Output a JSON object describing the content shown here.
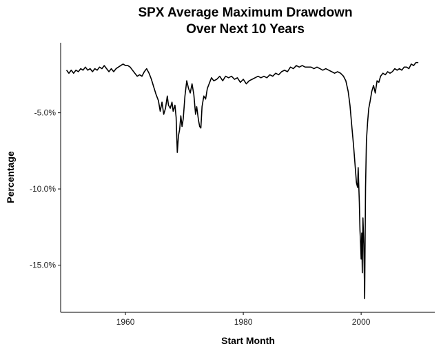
{
  "chart_data": {
    "type": "line",
    "title": [
      "SPX Average Maximum Drawdown",
      "Over Next 10 Years"
    ],
    "xlabel": "Start Month",
    "ylabel": "Percentage",
    "xlim": [
      1949,
      2012.5
    ],
    "ylim": [
      -18.1,
      -0.4
    ],
    "x_ticks": [
      1960,
      1980,
      2000
    ],
    "y_ticks": [
      {
        "value": -5,
        "label": "-5.0%"
      },
      {
        "value": -10,
        "label": "-10.0%"
      },
      {
        "value": -15,
        "label": "-15.0%"
      }
    ],
    "grid": false,
    "legend": "none",
    "line_color": "#000000",
    "series": [
      {
        "points": [
          [
            1950.0,
            -2.2
          ],
          [
            1950.4,
            -2.4
          ],
          [
            1950.8,
            -2.2
          ],
          [
            1951.2,
            -2.4
          ],
          [
            1951.6,
            -2.2
          ],
          [
            1952.0,
            -2.3
          ],
          [
            1952.4,
            -2.1
          ],
          [
            1952.8,
            -2.2
          ],
          [
            1953.2,
            -2.0
          ],
          [
            1953.6,
            -2.2
          ],
          [
            1954.0,
            -2.1
          ],
          [
            1954.4,
            -2.3
          ],
          [
            1954.8,
            -2.1
          ],
          [
            1955.2,
            -2.2
          ],
          [
            1955.6,
            -2.0
          ],
          [
            1956.0,
            -2.1
          ],
          [
            1956.4,
            -1.9
          ],
          [
            1956.8,
            -2.1
          ],
          [
            1957.2,
            -2.3
          ],
          [
            1957.6,
            -2.1
          ],
          [
            1958.0,
            -2.3
          ],
          [
            1958.4,
            -2.1
          ],
          [
            1958.8,
            -2.0
          ],
          [
            1959.2,
            -1.9
          ],
          [
            1959.6,
            -1.8
          ],
          [
            1960.0,
            -1.9
          ],
          [
            1960.4,
            -1.9
          ],
          [
            1960.8,
            -2.0
          ],
          [
            1961.2,
            -2.2
          ],
          [
            1961.6,
            -2.4
          ],
          [
            1962.0,
            -2.6
          ],
          [
            1962.4,
            -2.5
          ],
          [
            1962.8,
            -2.6
          ],
          [
            1963.2,
            -2.3
          ],
          [
            1963.6,
            -2.1
          ],
          [
            1964.0,
            -2.4
          ],
          [
            1964.4,
            -2.8
          ],
          [
            1964.8,
            -3.3
          ],
          [
            1965.2,
            -3.8
          ],
          [
            1965.6,
            -4.2
          ],
          [
            1965.9,
            -4.9
          ],
          [
            1966.2,
            -4.3
          ],
          [
            1966.5,
            -5.1
          ],
          [
            1966.8,
            -4.7
          ],
          [
            1967.1,
            -3.9
          ],
          [
            1967.3,
            -4.5
          ],
          [
            1967.6,
            -4.7
          ],
          [
            1967.9,
            -4.3
          ],
          [
            1968.1,
            -4.9
          ],
          [
            1968.4,
            -4.5
          ],
          [
            1968.6,
            -5.3
          ],
          [
            1968.8,
            -7.6
          ],
          [
            1969.0,
            -6.5
          ],
          [
            1969.2,
            -6.1
          ],
          [
            1969.4,
            -5.2
          ],
          [
            1969.6,
            -5.9
          ],
          [
            1969.8,
            -5.4
          ],
          [
            1970.1,
            -3.9
          ],
          [
            1970.4,
            -2.9
          ],
          [
            1970.7,
            -3.4
          ],
          [
            1971.0,
            -3.7
          ],
          [
            1971.3,
            -3.1
          ],
          [
            1971.6,
            -3.8
          ],
          [
            1971.9,
            -5.1
          ],
          [
            1972.1,
            -4.6
          ],
          [
            1972.4,
            -5.5
          ],
          [
            1972.6,
            -5.9
          ],
          [
            1972.8,
            -6.0
          ],
          [
            1973.0,
            -4.6
          ],
          [
            1973.3,
            -3.9
          ],
          [
            1973.6,
            -4.1
          ],
          [
            1973.9,
            -3.4
          ],
          [
            1974.2,
            -3.1
          ],
          [
            1974.6,
            -2.7
          ],
          [
            1975.0,
            -2.9
          ],
          [
            1975.5,
            -2.8
          ],
          [
            1976.0,
            -2.6
          ],
          [
            1976.5,
            -2.9
          ],
          [
            1977.0,
            -2.6
          ],
          [
            1977.5,
            -2.7
          ],
          [
            1978.0,
            -2.6
          ],
          [
            1978.5,
            -2.8
          ],
          [
            1979.0,
            -2.7
          ],
          [
            1979.5,
            -3.0
          ],
          [
            1980.0,
            -2.8
          ],
          [
            1980.5,
            -3.1
          ],
          [
            1981.0,
            -2.9
          ],
          [
            1981.5,
            -2.8
          ],
          [
            1982.0,
            -2.7
          ],
          [
            1982.5,
            -2.6
          ],
          [
            1983.0,
            -2.7
          ],
          [
            1983.5,
            -2.6
          ],
          [
            1984.0,
            -2.7
          ],
          [
            1984.5,
            -2.5
          ],
          [
            1985.0,
            -2.6
          ],
          [
            1985.5,
            -2.4
          ],
          [
            1986.0,
            -2.5
          ],
          [
            1986.5,
            -2.3
          ],
          [
            1987.0,
            -2.2
          ],
          [
            1987.5,
            -2.3
          ],
          [
            1988.0,
            -2.0
          ],
          [
            1988.5,
            -2.1
          ],
          [
            1989.0,
            -1.9
          ],
          [
            1989.5,
            -2.0
          ],
          [
            1990.0,
            -1.9
          ],
          [
            1990.5,
            -2.0
          ],
          [
            1991.0,
            -2.0
          ],
          [
            1991.5,
            -2.0
          ],
          [
            1992.0,
            -2.1
          ],
          [
            1992.5,
            -2.0
          ],
          [
            1993.0,
            -2.1
          ],
          [
            1993.5,
            -2.2
          ],
          [
            1994.0,
            -2.1
          ],
          [
            1994.5,
            -2.2
          ],
          [
            1995.0,
            -2.3
          ],
          [
            1995.5,
            -2.4
          ],
          [
            1996.0,
            -2.3
          ],
          [
            1996.5,
            -2.4
          ],
          [
            1997.0,
            -2.6
          ],
          [
            1997.4,
            -2.9
          ],
          [
            1997.8,
            -3.6
          ],
          [
            1998.1,
            -4.5
          ],
          [
            1998.4,
            -5.8
          ],
          [
            1998.7,
            -7.1
          ],
          [
            1999.0,
            -8.6
          ],
          [
            1999.2,
            -9.6
          ],
          [
            1999.4,
            -9.9
          ],
          [
            1999.5,
            -8.6
          ],
          [
            1999.7,
            -10.9
          ],
          [
            1999.8,
            -12.7
          ],
          [
            1999.9,
            -13.6
          ],
          [
            2000.0,
            -14.6
          ],
          [
            2000.1,
            -12.9
          ],
          [
            2000.2,
            -15.5
          ],
          [
            2000.3,
            -11.9
          ],
          [
            2000.45,
            -13.6
          ],
          [
            2000.6,
            -17.2
          ],
          [
            2000.75,
            -9.9
          ],
          [
            2000.9,
            -6.8
          ],
          [
            2001.1,
            -5.6
          ],
          [
            2001.3,
            -4.7
          ],
          [
            2001.5,
            -4.3
          ],
          [
            2001.8,
            -3.6
          ],
          [
            2002.1,
            -3.2
          ],
          [
            2002.4,
            -3.7
          ],
          [
            2002.7,
            -2.9
          ],
          [
            2003.0,
            -3.0
          ],
          [
            2003.3,
            -2.6
          ],
          [
            2003.7,
            -2.4
          ],
          [
            2004.1,
            -2.5
          ],
          [
            2004.5,
            -2.3
          ],
          [
            2004.9,
            -2.4
          ],
          [
            2005.3,
            -2.3
          ],
          [
            2005.7,
            -2.1
          ],
          [
            2006.1,
            -2.2
          ],
          [
            2006.5,
            -2.1
          ],
          [
            2006.9,
            -2.2
          ],
          [
            2007.3,
            -2.0
          ],
          [
            2007.7,
            -2.0
          ],
          [
            2008.1,
            -2.1
          ],
          [
            2008.5,
            -1.8
          ],
          [
            2008.9,
            -1.9
          ],
          [
            2009.3,
            -1.7
          ],
          [
            2009.7,
            -1.7
          ]
        ]
      }
    ]
  }
}
